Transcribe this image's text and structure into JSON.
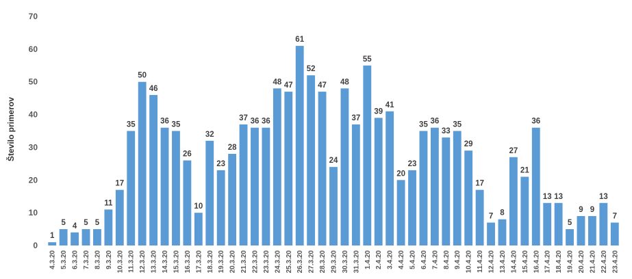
{
  "chart_data": {
    "type": "bar",
    "title": "",
    "xlabel": "",
    "ylabel": "Število primerov",
    "ylim": [
      0,
      70
    ],
    "yticks": [
      0,
      10,
      20,
      30,
      40,
      50,
      60,
      70
    ],
    "grid": false,
    "bar_color": "#5b9bd5",
    "categories": [
      "4.3.20",
      "5.3.20",
      "6.3.20",
      "7.3.20",
      "8.3.20",
      "9.3.20",
      "10.3.20",
      "11.3.20",
      "12.3.20",
      "13.3.20",
      "14.3.20",
      "15.3.20",
      "16.3.20",
      "17.3.20",
      "18.3.20",
      "19.3.20",
      "20.3.20",
      "21.3.20",
      "22.3.20",
      "23.3.20",
      "24.3.20",
      "25.3.20",
      "26.3.20",
      "27.3.20",
      "28.3.20",
      "29.3.20",
      "30.3.20",
      "31.3.20",
      "1.4.20",
      "2.4.20",
      "3.4.20",
      "4.4.20",
      "5.4.20",
      "6.4.20",
      "7.4.20",
      "8.4.20",
      "9.4.20",
      "10.4.20",
      "11.4.20",
      "12.4.20",
      "13.4.20",
      "14.4.20",
      "15.4.20",
      "16.4.20",
      "17.4.20",
      "18.4.20",
      "19.4.20",
      "20.4.20",
      "21.4.20",
      "22.4.20",
      "23.4.20"
    ],
    "values": [
      1,
      5,
      4,
      5,
      5,
      11,
      17,
      35,
      50,
      46,
      36,
      35,
      26,
      10,
      32,
      23,
      28,
      37,
      36,
      36,
      48,
      47,
      61,
      52,
      47,
      24,
      48,
      37,
      55,
      39,
      41,
      20,
      23,
      35,
      36,
      33,
      35,
      29,
      17,
      7,
      8,
      27,
      21,
      36,
      13,
      13,
      5,
      9,
      9,
      13,
      7
    ]
  }
}
